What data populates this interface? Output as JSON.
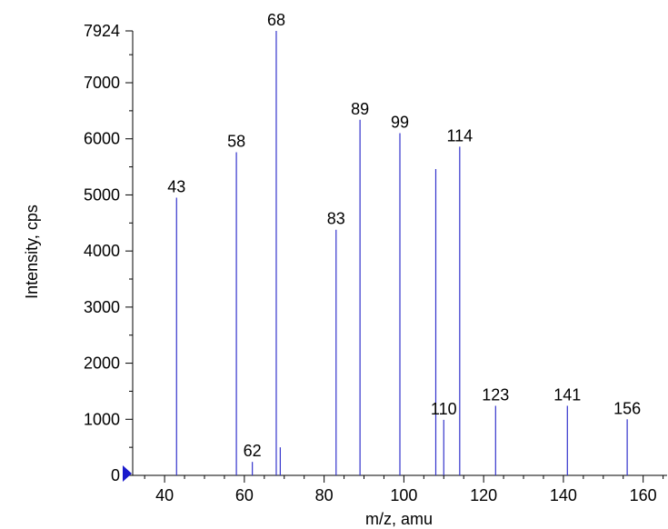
{
  "chart_data": {
    "type": "bar",
    "xlabel": "m/z, amu",
    "ylabel": "Intensity, cps",
    "xlim": [
      32,
      166
    ],
    "ylim": [
      0,
      7924
    ],
    "x_ticks": [
      40,
      60,
      80,
      100,
      120,
      140,
      160
    ],
    "y_ticks": [
      0,
      1000,
      2000,
      3000,
      4000,
      5000,
      6000,
      7000,
      7924
    ],
    "grid": false,
    "series_color": "#3333cc",
    "peaks": [
      {
        "x": 43,
        "y": 4950,
        "label": "43"
      },
      {
        "x": 58,
        "y": 5760,
        "label": "58"
      },
      {
        "x": 62,
        "y": 240,
        "label": "62"
      },
      {
        "x": 68,
        "y": 7924,
        "label": "68"
      },
      {
        "x": 69,
        "y": 500,
        "label": ""
      },
      {
        "x": 83,
        "y": 4380,
        "label": "83"
      },
      {
        "x": 89,
        "y": 6340,
        "label": "89"
      },
      {
        "x": 99,
        "y": 6100,
        "label": "99"
      },
      {
        "x": 108,
        "y": 5460,
        "label": ""
      },
      {
        "x": 110,
        "y": 990,
        "label": "110"
      },
      {
        "x": 114,
        "y": 5860,
        "label": "114"
      },
      {
        "x": 123,
        "y": 1240,
        "label": "123"
      },
      {
        "x": 141,
        "y": 1240,
        "label": "141"
      },
      {
        "x": 156,
        "y": 1000,
        "label": "156"
      }
    ]
  }
}
